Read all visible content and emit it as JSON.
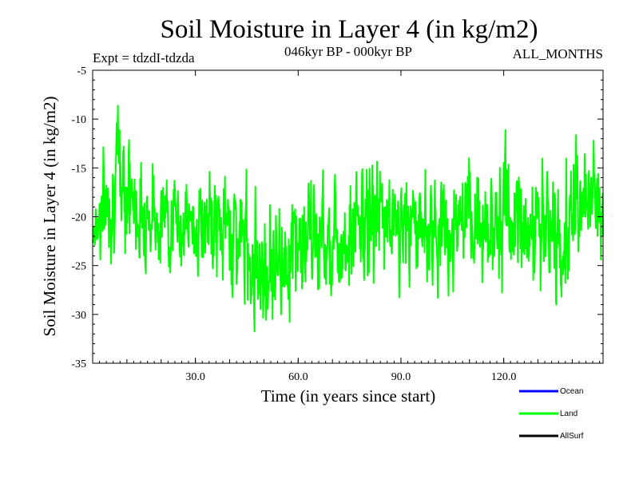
{
  "chart_data": {
    "type": "line",
    "title": "Soil Moisture in Layer 4 (in kg/m2)",
    "subtitle_left": "Expt = tdzdI-tdzda",
    "subtitle_center": "046kyr BP - 000kyr BP",
    "subtitle_right": "ALL_MONTHS",
    "xlabel": "Time (in years since start)",
    "ylabel": "Soil Moisture in Layer 4 (in kg/m2)",
    "xlim": [
      0,
      149
    ],
    "ylim": [
      -35,
      -5
    ],
    "xticks": [
      30,
      60,
      90,
      120
    ],
    "xtick_labels": [
      "30.0",
      "60.0",
      "90.0",
      "120.0"
    ],
    "yticks": [
      -5,
      -10,
      -15,
      -20,
      -25,
      -30,
      -35
    ],
    "ytick_labels": [
      "-5",
      "-10",
      "-15",
      "-20",
      "-25",
      "-30",
      "-35"
    ],
    "legend_position": "bottom-right",
    "series": [
      {
        "name": "Ocean",
        "color": "#0000ff",
        "values": []
      },
      {
        "name": "Land",
        "color": "#00ff00",
        "x_start": 0,
        "x_step": 0.125,
        "seed": 7,
        "envelope": [
          [
            0,
            -21,
            4.0
          ],
          [
            5,
            -18,
            5.0
          ],
          [
            9,
            -15,
            6.5
          ],
          [
            12,
            -19,
            5.0
          ],
          [
            20,
            -20,
            4.0
          ],
          [
            30,
            -21,
            4.0
          ],
          [
            40,
            -21,
            5.0
          ],
          [
            50,
            -25,
            6.0
          ],
          [
            56,
            -24,
            5.5
          ],
          [
            65,
            -22,
            5.0
          ],
          [
            75,
            -22,
            5.5
          ],
          [
            82,
            -20,
            6.0
          ],
          [
            90,
            -21,
            5.0
          ],
          [
            100,
            -21,
            5.0
          ],
          [
            110,
            -21,
            5.0
          ],
          [
            120,
            -20,
            5.5
          ],
          [
            130,
            -21,
            5.0
          ],
          [
            137,
            -23,
            6.0
          ],
          [
            142,
            -18,
            5.0
          ],
          [
            149,
            -19,
            5.0
          ]
        ]
      },
      {
        "name": "AllSurf",
        "color": "#000000",
        "values": []
      }
    ]
  },
  "legend": {
    "items": [
      {
        "label": "Ocean",
        "color": "#0000ff"
      },
      {
        "label": "Land",
        "color": "#00ff00"
      },
      {
        "label": "AllSurf",
        "color": "#000000"
      }
    ]
  }
}
